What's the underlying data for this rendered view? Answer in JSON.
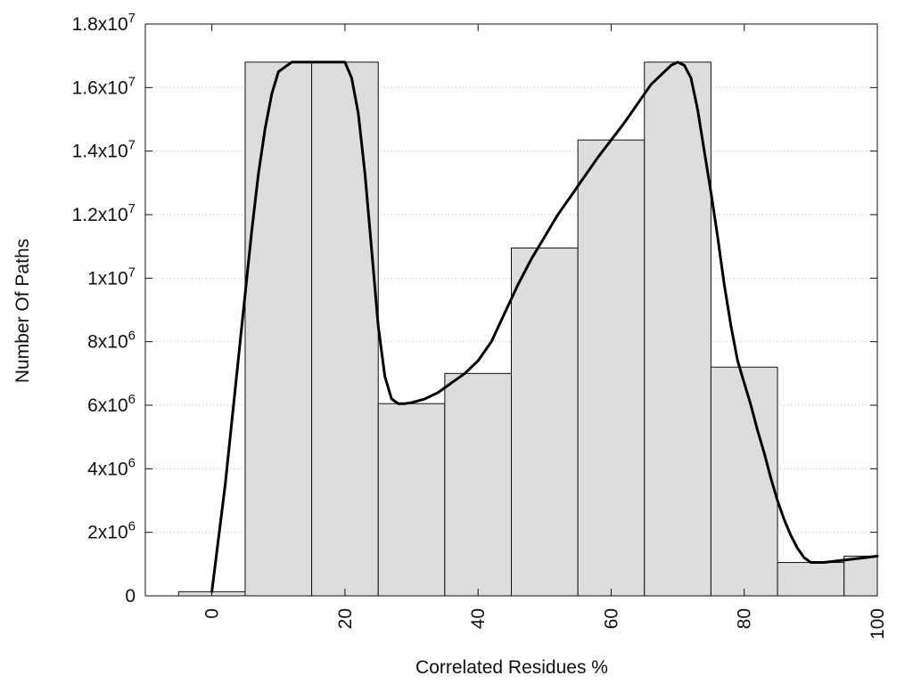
{
  "chart_data": {
    "type": "bar",
    "title": "",
    "xlabel": "Correlated Residues %",
    "ylabel": "Number Of Paths",
    "xlim": [
      -10,
      100
    ],
    "ylim": [
      0,
      18000000
    ],
    "bin_width": 10,
    "bins": [
      {
        "center": 0,
        "value": 130000
      },
      {
        "center": 10,
        "value": 16800000
      },
      {
        "center": 20,
        "value": 16800000
      },
      {
        "center": 30,
        "value": 6050000
      },
      {
        "center": 40,
        "value": 7000000
      },
      {
        "center": 50,
        "value": 10950000
      },
      {
        "center": 60,
        "value": 14350000
      },
      {
        "center": 70,
        "value": 16800000
      },
      {
        "center": 80,
        "value": 7200000
      },
      {
        "center": 90,
        "value": 1050000
      },
      {
        "center": 100,
        "value": 1250000
      }
    ],
    "curve": {
      "x": [
        0,
        2,
        4,
        6,
        7,
        8,
        9,
        10,
        12,
        14,
        16,
        18,
        20,
        21,
        22,
        23,
        24,
        25,
        26,
        27,
        28,
        29,
        30,
        32,
        34,
        36,
        38,
        40,
        42,
        44,
        46,
        48,
        50,
        52,
        54,
        56,
        58,
        60,
        62,
        64,
        66,
        68,
        69,
        70,
        71,
        72,
        73,
        74,
        75,
        76,
        77,
        78,
        79,
        80,
        81,
        82,
        83,
        84,
        85,
        86,
        87,
        88,
        89,
        90,
        92,
        94,
        96,
        98,
        100
      ],
      "y": [
        130000,
        3500000,
        7500000,
        11500000,
        13300000,
        14700000,
        15800000,
        16500000,
        16800000,
        16800000,
        16800000,
        16800000,
        16800000,
        16300000,
        15200000,
        13300000,
        10900000,
        8500000,
        6900000,
        6200000,
        6050000,
        6050000,
        6080000,
        6200000,
        6400000,
        6700000,
        7000000,
        7400000,
        8000000,
        8900000,
        9800000,
        10600000,
        11300000,
        12000000,
        12600000,
        13200000,
        13800000,
        14350000,
        14900000,
        15500000,
        16100000,
        16500000,
        16700000,
        16800000,
        16700000,
        16300000,
        15300000,
        14000000,
        12700000,
        11300000,
        9800000,
        8500000,
        7400000,
        6700000,
        6000000,
        5200000,
        4500000,
        3700000,
        3000000,
        2400000,
        1900000,
        1500000,
        1200000,
        1050000,
        1050000,
        1100000,
        1150000,
        1200000,
        1250000
      ]
    },
    "yticks": [
      {
        "value": 0,
        "mantissa": "0",
        "exp": ""
      },
      {
        "value": 2000000,
        "mantissa": "2x10",
        "exp": "6"
      },
      {
        "value": 4000000,
        "mantissa": "4x10",
        "exp": "6"
      },
      {
        "value": 6000000,
        "mantissa": "6x10",
        "exp": "6"
      },
      {
        "value": 8000000,
        "mantissa": "8x10",
        "exp": "6"
      },
      {
        "value": 10000000,
        "mantissa": "1x10",
        "exp": "7"
      },
      {
        "value": 12000000,
        "mantissa": "1.2x10",
        "exp": "7"
      },
      {
        "value": 14000000,
        "mantissa": "1.4x10",
        "exp": "7"
      },
      {
        "value": 16000000,
        "mantissa": "1.6x10",
        "exp": "7"
      },
      {
        "value": 18000000,
        "mantissa": "1.8x10",
        "exp": "7"
      }
    ],
    "xticks": [
      {
        "value": 0,
        "label": "0"
      },
      {
        "value": 20,
        "label": "20"
      },
      {
        "value": 40,
        "label": "40"
      },
      {
        "value": 60,
        "label": "60"
      },
      {
        "value": 80,
        "label": "80"
      },
      {
        "value": 100,
        "label": "100"
      }
    ],
    "grid": "horizontal dotted",
    "legend": "none",
    "colors": {
      "bar_fill": "#dddddd",
      "bar_stroke": "#111111",
      "curve": "#000000",
      "grid": "#bbbbbb"
    }
  }
}
